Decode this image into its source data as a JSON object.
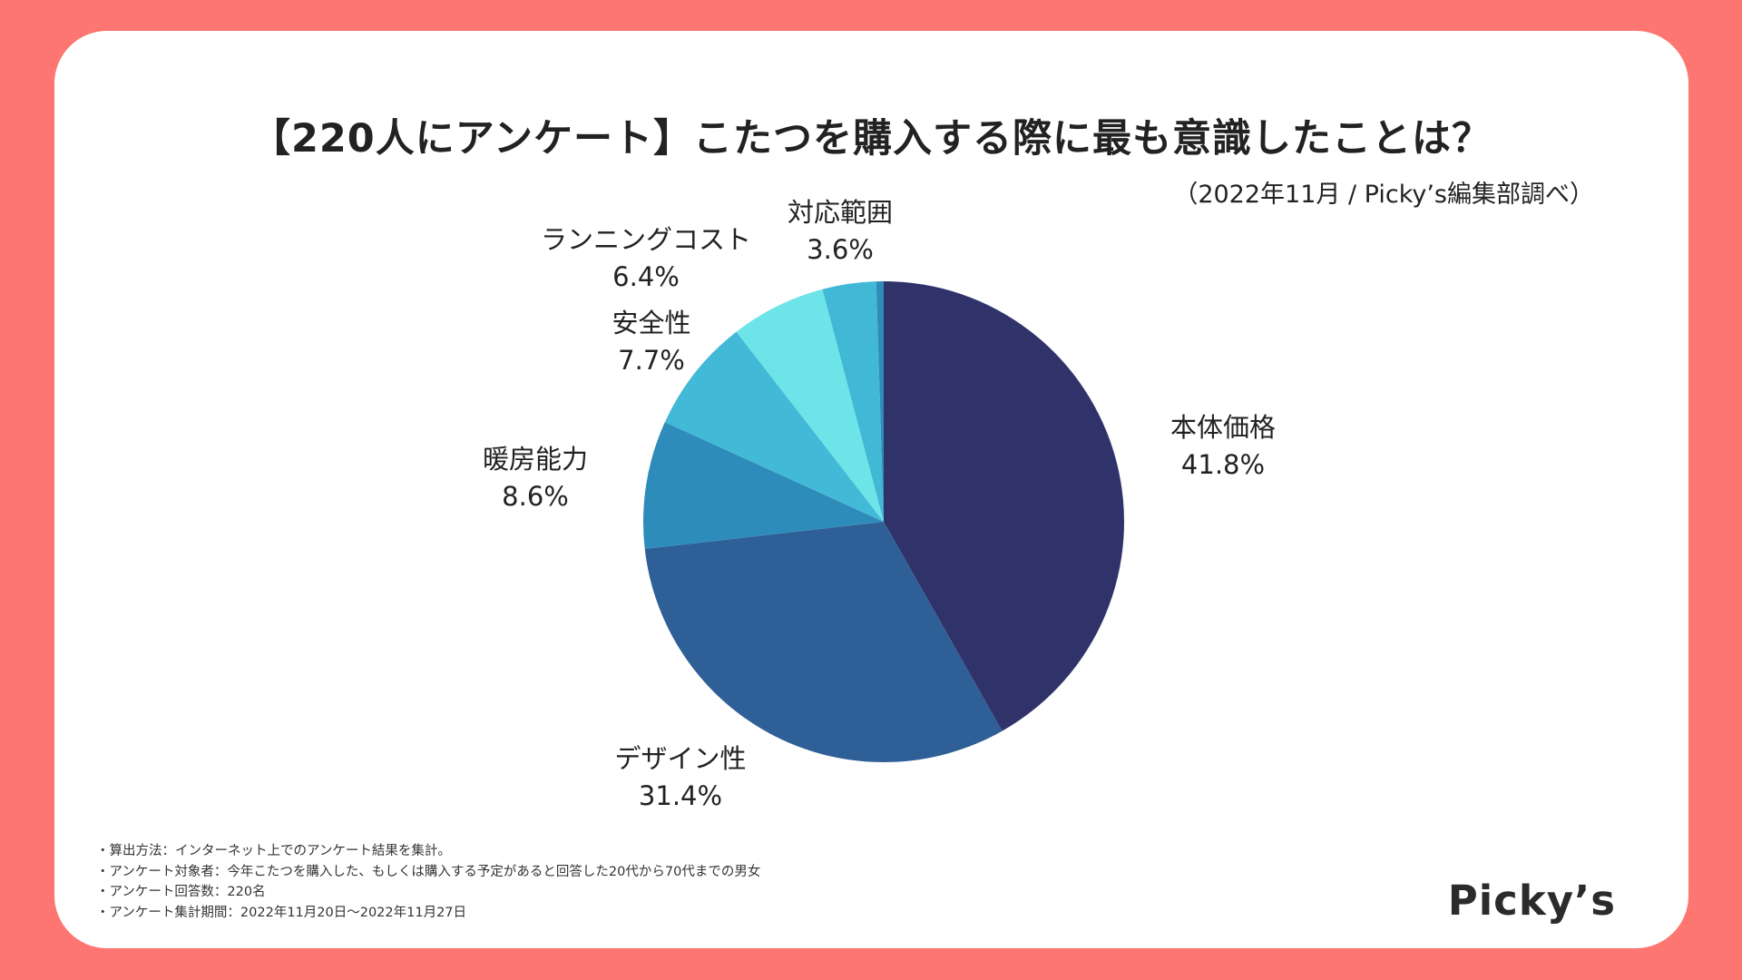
{
  "title": "【220人にアンケート】こたつを購入する際に最も意識したことは？",
  "subtitle": "（2022年11月 / Picky’s編集部調べ）",
  "logo": "Picky’s",
  "notes": [
    "・算出方法：インターネット上でのアンケート結果を集計。",
    "・アンケート対象者：今年こたつを購入した、もしくは購入する予定があると回答した20代から70代までの男女",
    "・アンケート回答数：220名",
    "・アンケート集計期間：2022年11月20日〜2022年11月27日"
  ],
  "chart_data": {
    "type": "pie",
    "title": "【220人にアンケート】こたつを購入する際に最も意識したことは？",
    "start": "12 o'clock, clockwise",
    "slices": [
      {
        "label": "本体価格",
        "value": 41.8,
        "value_label": "41.8%",
        "color": "#30336a"
      },
      {
        "label": "デザイン性",
        "value": 31.4,
        "value_label": "31.4%",
        "color": "#2f5f97"
      },
      {
        "label": "暖房能力",
        "value": 8.6,
        "value_label": "8.6%",
        "color": "#2e8cba"
      },
      {
        "label": "安全性",
        "value": 7.7,
        "value_label": "7.7%",
        "color": "#42b9d6"
      },
      {
        "label": "ランニングコスト",
        "value": 6.4,
        "value_label": "6.4%",
        "color": "#6de5e8"
      },
      {
        "label": "対応範囲",
        "value": 3.6,
        "value_label": "3.6%",
        "color": "#41b8d6"
      },
      {
        "label": "",
        "value": 0.5,
        "value_label": "",
        "color": "#2e8cba"
      }
    ]
  }
}
